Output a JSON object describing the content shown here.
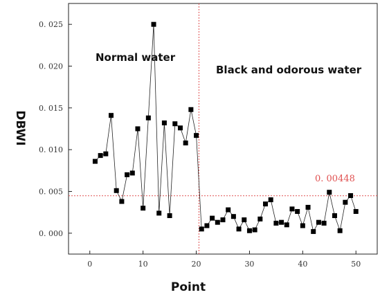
{
  "chart_data": {
    "type": "line",
    "title": "",
    "xlabel": "Point",
    "ylabel": "DBWI",
    "xlim": [
      -4,
      54
    ],
    "ylim": [
      -0.0025,
      0.0275
    ],
    "xticks": [
      0,
      10,
      20,
      30,
      40,
      50
    ],
    "xtick_labels": [
      "0",
      "10",
      "20",
      "30",
      "40",
      "50"
    ],
    "yticks": [
      0,
      0.005,
      0.01,
      0.015,
      0.02,
      0.025
    ],
    "ytick_labels": [
      "0. 000",
      "0. 005",
      "0. 010",
      "0. 015",
      "0. 020",
      "0. 025"
    ],
    "series": [
      {
        "marker": "square",
        "color": "#000000",
        "x": [
          1,
          2,
          3,
          4,
          5,
          6,
          7,
          8,
          9,
          10,
          11,
          12,
          13,
          14,
          15,
          16,
          17,
          18,
          19,
          20,
          21,
          22,
          23,
          24,
          25,
          26,
          27,
          28,
          29,
          30,
          31,
          32,
          33,
          34,
          35,
          36,
          37,
          38,
          39,
          40,
          41,
          42,
          43,
          44,
          45,
          46,
          47,
          48,
          49,
          50
        ],
        "y": [
          0.0086,
          0.0093,
          0.0095,
          0.0141,
          0.0051,
          0.0038,
          0.007,
          0.0072,
          0.0125,
          0.003,
          0.0138,
          0.025,
          0.0024,
          0.0132,
          0.0021,
          0.0131,
          0.0126,
          0.0108,
          0.0148,
          0.0117,
          0.0005,
          0.0009,
          0.0018,
          0.0013,
          0.0016,
          0.0028,
          0.002,
          0.0005,
          0.0016,
          0.0003,
          0.0004,
          0.0017,
          0.0035,
          0.004,
          0.0012,
          0.0013,
          0.001,
          0.0029,
          0.0026,
          0.0009,
          0.0031,
          0.0002,
          0.0013,
          0.0012,
          0.0049,
          0.0021,
          0.0003,
          0.0037,
          0.0045,
          0.0026
        ]
      }
    ],
    "threshold": {
      "value": 0.00448,
      "label": "0. 00448",
      "color": "#e05050"
    },
    "divider": {
      "x": 20.5,
      "color": "#e05050"
    },
    "annotations": {
      "left_region": "Normal water",
      "right_region": "Black and odorous water"
    },
    "grid": false
  }
}
